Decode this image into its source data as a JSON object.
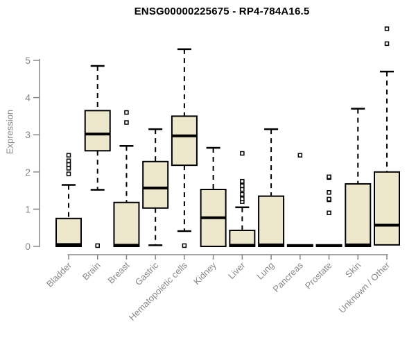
{
  "title": "ENSG00000225675 - RP4-784A16.5",
  "chart_data": {
    "type": "box",
    "title": "ENSG00000225675 - RP4-784A16.5",
    "ylabel": "Expression",
    "xlabel": "",
    "ylim": [
      0,
      5
    ],
    "yticks": [
      0,
      1,
      2,
      3,
      4,
      5
    ],
    "grid": false,
    "legend": false,
    "categories": [
      "Bladder",
      "Brain",
      "Breast",
      "Gastric",
      "Hematopoietic cells",
      "Kidney",
      "Liver",
      "Lung",
      "Pancreas",
      "Prostate",
      "Skin",
      "Unknown / Other"
    ],
    "boxes": [
      {
        "category": "Bladder",
        "whisker_low": 0,
        "q1": 0,
        "median": 0.05,
        "q3": 0.75,
        "whisker_high": 1.65,
        "outliers": [
          1.95,
          2.1,
          2.2,
          2.3,
          2.45
        ]
      },
      {
        "category": "Brain",
        "whisker_low": 1.52,
        "q1": 2.57,
        "median": 3.02,
        "q3": 3.65,
        "whisker_high": 4.85,
        "outliers": [
          0.02
        ]
      },
      {
        "category": "Breast",
        "whisker_low": 0,
        "q1": 0,
        "median": 0.03,
        "q3": 1.18,
        "whisker_high": 2.7,
        "outliers": [
          3.33,
          3.6
        ]
      },
      {
        "category": "Gastric",
        "whisker_low": 0.03,
        "q1": 1.03,
        "median": 1.57,
        "q3": 2.28,
        "whisker_high": 3.15,
        "outliers": []
      },
      {
        "category": "Hematopoietic cells",
        "whisker_low": 0.41,
        "q1": 2.18,
        "median": 2.97,
        "q3": 3.5,
        "whisker_high": 5.3,
        "outliers": [
          0.02
        ]
      },
      {
        "category": "Kidney",
        "whisker_low": 0,
        "q1": 0,
        "median": 0.77,
        "q3": 1.53,
        "whisker_high": 2.65,
        "outliers": []
      },
      {
        "category": "Liver",
        "whisker_low": 0,
        "q1": 0,
        "median": 0.03,
        "q3": 0.43,
        "whisker_high": 1.05,
        "outliers": [
          1.2,
          1.28,
          1.4,
          1.53,
          1.63,
          1.75,
          2.5
        ]
      },
      {
        "category": "Lung",
        "whisker_low": 0,
        "q1": 0,
        "median": 0.04,
        "q3": 1.35,
        "whisker_high": 3.15,
        "outliers": []
      },
      {
        "category": "Pancreas",
        "whisker_low": 0,
        "q1": 0,
        "median": 0.02,
        "q3": 0.04,
        "whisker_high": 0.04,
        "outliers": [
          2.45
        ]
      },
      {
        "category": "Prostate",
        "whisker_low": 0,
        "q1": 0,
        "median": 0.02,
        "q3": 0.04,
        "whisker_high": 0.04,
        "outliers": [
          0.9,
          1.25,
          1.27,
          1.45,
          1.85,
          1.87
        ]
      },
      {
        "category": "Skin",
        "whisker_low": 0,
        "q1": 0,
        "median": 0.04,
        "q3": 1.68,
        "whisker_high": 3.7,
        "outliers": []
      },
      {
        "category": "Unknown / Other",
        "whisker_low": 0.04,
        "q1": 0.04,
        "median": 0.57,
        "q3": 2.0,
        "whisker_high": 4.7,
        "outliers": [
          5.45,
          5.85
        ]
      }
    ],
    "colors": {
      "box_fill": "#EDE8CC",
      "box_border": "#000000",
      "median": "#000000",
      "whisker": "#000000",
      "outlier_stroke": "#000000",
      "outlier_fill": "#FFFFFF",
      "axis": "#888888",
      "title": "#000000",
      "background": "#FFFFFF"
    }
  }
}
